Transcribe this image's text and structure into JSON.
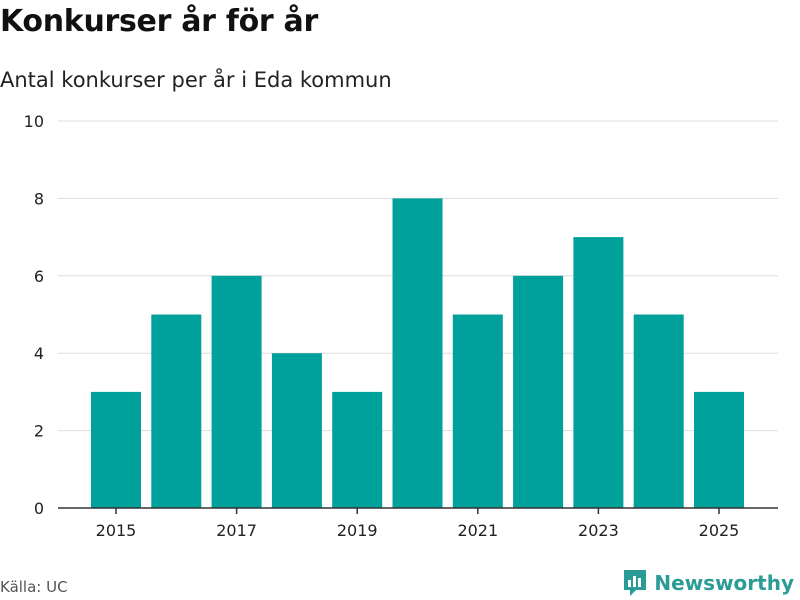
{
  "title": "Konkurser år för år",
  "subtitle": "Antal konkurser per år i Eda kommun",
  "source": "Källa: UC",
  "brand": "Newsworthy",
  "colors": {
    "bar": "#00a19a",
    "brand": "#2a9c95"
  },
  "chart_data": {
    "type": "bar",
    "title": "Konkurser år för år",
    "subtitle": "Antal konkurser per år i Eda kommun",
    "categories": [
      2015,
      2016,
      2017,
      2018,
      2019,
      2020,
      2021,
      2022,
      2023,
      2024,
      2025
    ],
    "values": [
      3,
      5,
      6,
      4,
      3,
      8,
      5,
      6,
      7,
      5,
      3
    ],
    "xticks": [
      "2015",
      "2017",
      "2019",
      "2021",
      "2023",
      "2025"
    ],
    "yticks": [
      "0",
      "2",
      "4",
      "6",
      "8",
      "10"
    ],
    "xlabel": "",
    "ylabel": "",
    "ylim": [
      0,
      10
    ],
    "grid": true,
    "legend": "none"
  }
}
